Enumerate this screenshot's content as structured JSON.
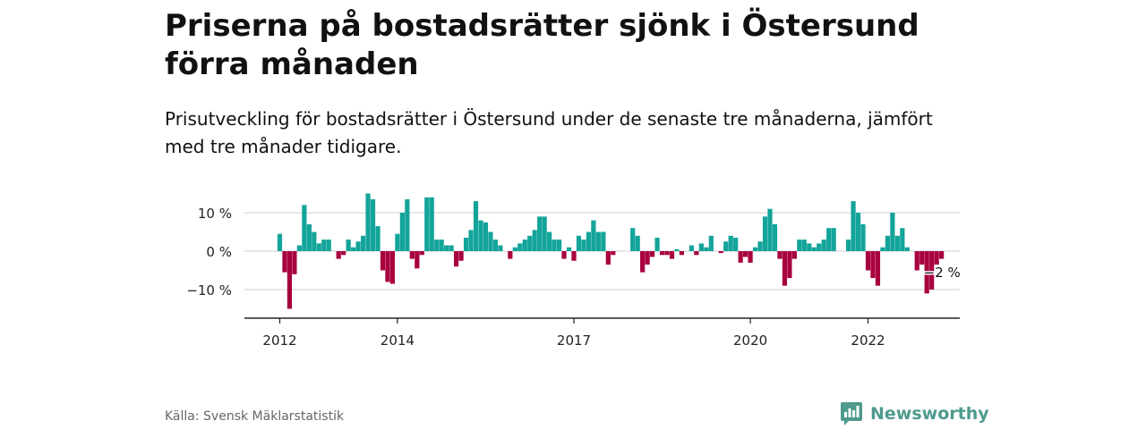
{
  "header": {
    "title": "Priserna på bostadsrätter sjönk i Östersund förra månaden",
    "subtitle": "Prisutveckling för bostadsrätter i Östersund under de senaste tre månaderna, jämfört med tre månader tidigare."
  },
  "footer": {
    "source": "Källa: Svensk Mäklarstatistik",
    "brand": "Newsworthy"
  },
  "colors": {
    "positive": "#13a49a",
    "negative": "#a8003f",
    "grid": "#d9d9d9",
    "axis": "#222222",
    "brand": "#4e9a8d"
  },
  "chart_data": {
    "type": "bar",
    "ylim": [
      -17,
      15
    ],
    "y_ticks": [
      10,
      0,
      -10
    ],
    "y_tick_labels": [
      "10 %",
      "0 %",
      "−10 %"
    ],
    "x_ticks": [
      {
        "label": "2012",
        "x": "2012-01"
      },
      {
        "label": "2014",
        "x": "2014-01"
      },
      {
        "label": "2017",
        "x": "2017-01"
      },
      {
        "label": "2020",
        "x": "2020-01"
      },
      {
        "label": "2022",
        "x": "2022-01"
      }
    ],
    "start": "2012-01",
    "values": [
      4.5,
      -5.5,
      -15,
      -6,
      1.5,
      12,
      7,
      5,
      2,
      3,
      3,
      0,
      -2,
      -1,
      3,
      1,
      2.5,
      4,
      15,
      13.5,
      6.5,
      -5,
      -8,
      -8.5,
      4.5,
      10,
      13.5,
      -2,
      -4.5,
      -1,
      14,
      14,
      3,
      3,
      1.5,
      1.5,
      -4,
      -2.5,
      3.5,
      5.5,
      13,
      8,
      7.5,
      5,
      3,
      1.5,
      0,
      -2,
      1,
      2,
      3,
      4,
      5.5,
      9,
      9,
      5,
      3,
      3,
      -2,
      1,
      -2.5,
      4,
      3,
      5,
      8,
      5,
      5,
      -3.5,
      -1,
      0,
      0,
      0,
      6,
      4,
      -5.5,
      -3.5,
      -1.5,
      3.5,
      -1,
      -1,
      -2,
      0.5,
      -1,
      0,
      1.5,
      -1,
      2,
      1,
      4,
      0,
      -0.5,
      2.5,
      4,
      3.5,
      -3,
      -1.5,
      -3,
      1,
      2.5,
      9,
      11,
      7,
      -2,
      -9,
      -7,
      -2,
      3,
      3,
      2,
      1,
      2,
      3,
      6,
      6,
      0,
      0,
      3,
      13,
      10,
      7,
      -5,
      -7,
      -9,
      1,
      4,
      10,
      4,
      6,
      1,
      0,
      -5,
      -3.5,
      -11,
      -10,
      -3.5,
      -2
    ],
    "last_label": "−2 %"
  }
}
